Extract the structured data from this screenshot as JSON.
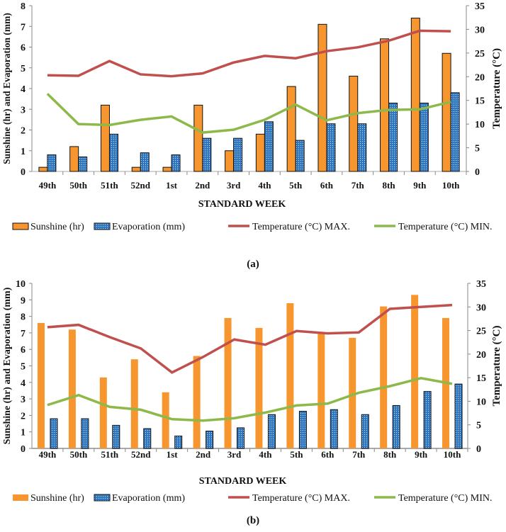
{
  "colors": {
    "sunshine": "#F7962F",
    "evaporation": "#2E75C0",
    "tmax": "#C0504D",
    "tmin": "#8DB84A"
  },
  "chart_data": [
    {
      "type": "bar+line",
      "panel_label": "(a)",
      "xlabel": "STANDARD WEEK",
      "ylabel": "Sunshine (hr) and Evaporation (mm)",
      "y2label": "Temperature (°C)",
      "ylim": [
        0,
        8
      ],
      "y2lim": [
        0,
        35
      ],
      "ystep": 1,
      "y2step": 5,
      "categories": [
        "49th",
        "50th",
        "51th",
        "52nd",
        "1st",
        "2nd",
        "3rd",
        "4th",
        "5th",
        "6th",
        "7th",
        "8th",
        "9th",
        "10th"
      ],
      "series": [
        {
          "name": "Sunshine (hr)",
          "type": "bar",
          "axis": "left",
          "values": [
            0.2,
            1.2,
            3.2,
            0.2,
            0.2,
            3.2,
            1.0,
            1.8,
            4.1,
            7.1,
            4.6,
            6.4,
            7.4,
            5.7
          ]
        },
        {
          "name": "Evaporation (mm)",
          "type": "bar",
          "axis": "left",
          "values": [
            0.8,
            0.7,
            1.8,
            0.9,
            0.8,
            1.6,
            1.6,
            2.4,
            1.5,
            2.3,
            2.3,
            3.3,
            3.3,
            3.8
          ]
        },
        {
          "name": "Temperature (°C) MAX.",
          "type": "line",
          "axis": "right",
          "values": [
            20.3,
            20.2,
            23.3,
            20.5,
            20.1,
            20.7,
            23.0,
            24.4,
            23.9,
            25.4,
            26.2,
            27.6,
            29.7,
            29.6
          ]
        },
        {
          "name": "Temperature (°C) MIN.",
          "type": "line",
          "axis": "right",
          "values": [
            16.4,
            10.0,
            9.8,
            10.9,
            11.6,
            8.2,
            8.8,
            10.9,
            14.1,
            10.8,
            12.3,
            13.0,
            13.1,
            14.7
          ]
        }
      ]
    },
    {
      "type": "bar+line",
      "panel_label": "(b)",
      "xlabel": "STANDARD WEEK",
      "ylabel": "Sunshine (hr)  and Evaporation (mm)",
      "y2label": "Temperature (°C)",
      "ylim": [
        0,
        10
      ],
      "y2lim": [
        0,
        35
      ],
      "ystep": 1,
      "y2step": 5,
      "categories": [
        "49th",
        "50th",
        "51th",
        "52nd",
        "1st",
        "2nd",
        "3rd",
        "4th",
        "5th",
        "6th",
        "7th",
        "8th",
        "9th",
        "10th"
      ],
      "series": [
        {
          "name": "Sunshine (hr)",
          "type": "bar",
          "axis": "left",
          "values": [
            7.6,
            7.2,
            4.3,
            5.4,
            3.4,
            5.6,
            7.9,
            7.3,
            8.8,
            7.0,
            6.7,
            8.6,
            9.3,
            7.9
          ]
        },
        {
          "name": "Evaporation (mm)",
          "type": "bar",
          "axis": "left",
          "values": [
            1.8,
            1.8,
            1.4,
            1.2,
            0.75,
            1.05,
            1.25,
            2.05,
            2.25,
            2.35,
            2.05,
            2.6,
            3.45,
            3.9
          ]
        },
        {
          "name": "Temperature (°C) MAX.",
          "type": "line",
          "axis": "right",
          "values": [
            25.7,
            26.2,
            23.6,
            21.2,
            16.1,
            19.4,
            23.1,
            22.0,
            24.9,
            24.4,
            24.6,
            29.6,
            30.0,
            30.4
          ]
        },
        {
          "name": "Temperature (°C) MIN.",
          "type": "line",
          "axis": "right",
          "values": [
            9.2,
            11.3,
            8.8,
            8.2,
            6.2,
            5.9,
            6.4,
            7.6,
            9.1,
            9.5,
            11.8,
            13.2,
            14.9,
            13.7
          ]
        }
      ]
    }
  ]
}
